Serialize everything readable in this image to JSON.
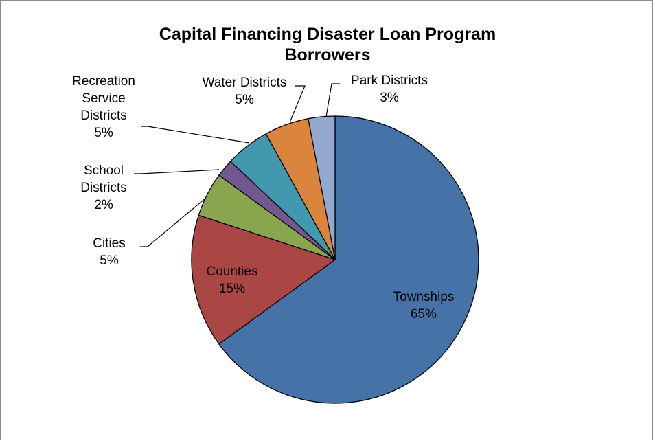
{
  "chart_data": {
    "type": "pie",
    "title": "Capital Financing Disaster Loan Program Borrowers",
    "title_lines": [
      "Capital Financing Disaster Loan Program",
      "Borrowers"
    ],
    "legend": "none",
    "slices": [
      {
        "label": "Townships",
        "value": 65,
        "value_label": "65%",
        "color": "#4572a7",
        "label_lines": [
          "Townships"
        ]
      },
      {
        "label": "Counties",
        "value": 15,
        "value_label": "15%",
        "color": "#aa4643",
        "label_lines": [
          "Counties"
        ]
      },
      {
        "label": "Cities",
        "value": 5,
        "value_label": "5%",
        "color": "#89a54e",
        "label_lines": [
          "Cities"
        ]
      },
      {
        "label": "School Districts",
        "value": 2,
        "value_label": "2%",
        "color": "#71588f",
        "label_lines": [
          "School",
          "Districts"
        ]
      },
      {
        "label": "Recreation Service Districts",
        "value": 5,
        "value_label": "5%",
        "color": "#4198af",
        "label_lines": [
          "Recreation",
          "Service",
          "Districts"
        ]
      },
      {
        "label": "Water Districts",
        "value": 5,
        "value_label": "5%",
        "color": "#db843d",
        "label_lines": [
          "Water Districts"
        ]
      },
      {
        "label": "Park Districts",
        "value": 3,
        "value_label": "3%",
        "color": "#93a9cf",
        "label_lines": [
          "Park Districts"
        ]
      }
    ]
  }
}
